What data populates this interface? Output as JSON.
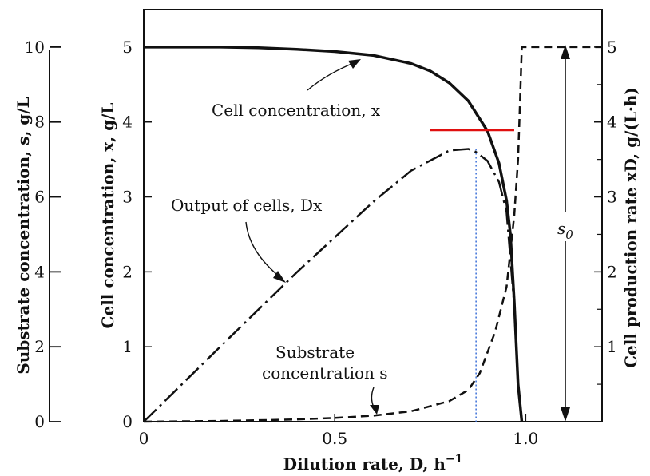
{
  "chart_data": {
    "type": "line",
    "xlabel": "Dilution rate, D, h",
    "xlabel_exponent": "−1",
    "ylabel_left": "Cell concentration, x, g/L",
    "ylabel_outer": "Substrate concentration, s, g/L",
    "ylabel_right": "Cell production rate xD, g/(L·h)",
    "xlim": [
      0,
      1.2
    ],
    "ylim": [
      0,
      5.5
    ],
    "x_ticks": [
      "0",
      "0.5",
      "1.0"
    ],
    "x_tick_values": [
      0,
      0.5,
      1.0
    ],
    "y_ticks_left": [
      "0",
      "1",
      "2",
      "3",
      "4",
      "5"
    ],
    "y_ticks_outer": [
      "0",
      "2",
      "4",
      "6",
      "8",
      "10"
    ],
    "y_ticks_right": [
      "1",
      "2",
      "3",
      "4",
      "5"
    ],
    "annotations": {
      "cell": "Cell concentration, x",
      "output": "Output of cells, Dx",
      "substrate_line1": "Substrate",
      "substrate_line2": "concentration s",
      "s0_base": "s",
      "s0_sub": "0"
    },
    "series": [
      {
        "name": "Cell concentration, x",
        "style": "solid",
        "x": [
          0,
          0.1,
          0.2,
          0.3,
          0.4,
          0.5,
          0.6,
          0.7,
          0.75,
          0.8,
          0.85,
          0.9,
          0.93,
          0.95,
          0.96,
          0.97,
          0.98,
          0.99
        ],
        "y": [
          5.0,
          5.0,
          5.0,
          4.99,
          4.97,
          4.94,
          4.89,
          4.78,
          4.68,
          4.52,
          4.28,
          3.88,
          3.45,
          2.95,
          2.5,
          1.6,
          0.5,
          0
        ]
      },
      {
        "name": "Output of cells, Dx",
        "style": "dashdot",
        "x": [
          0,
          0.2,
          0.4,
          0.6,
          0.7,
          0.8,
          0.85,
          0.87,
          0.9,
          0.93,
          0.95,
          0.97,
          0.98,
          0.99
        ],
        "y": [
          0,
          1.0,
          1.99,
          2.93,
          3.35,
          3.62,
          3.64,
          3.6,
          3.48,
          3.2,
          2.8,
          1.55,
          0.5,
          0
        ]
      },
      {
        "name": "Substrate concentration s",
        "style": "dashed",
        "x": [
          0,
          0.2,
          0.4,
          0.5,
          0.6,
          0.7,
          0.8,
          0.85,
          0.88,
          0.92,
          0.95,
          0.97,
          0.98,
          0.985,
          0.99,
          0.995,
          1.1,
          1.2
        ],
        "y": [
          0,
          0.02,
          0.06,
          0.1,
          0.16,
          0.28,
          0.55,
          0.85,
          1.3,
          2.4,
          3.6,
          5.5,
          7.0,
          8.5,
          10,
          10,
          10,
          10
        ]
      }
    ],
    "optimum_marker": {
      "x": 0.87,
      "y": 3.64,
      "xmin": 0.75,
      "xmax": 0.97
    },
    "colors": {
      "curve": "#111111",
      "optimum_line": "#e01010",
      "guide": "#3a6fd8"
    }
  }
}
